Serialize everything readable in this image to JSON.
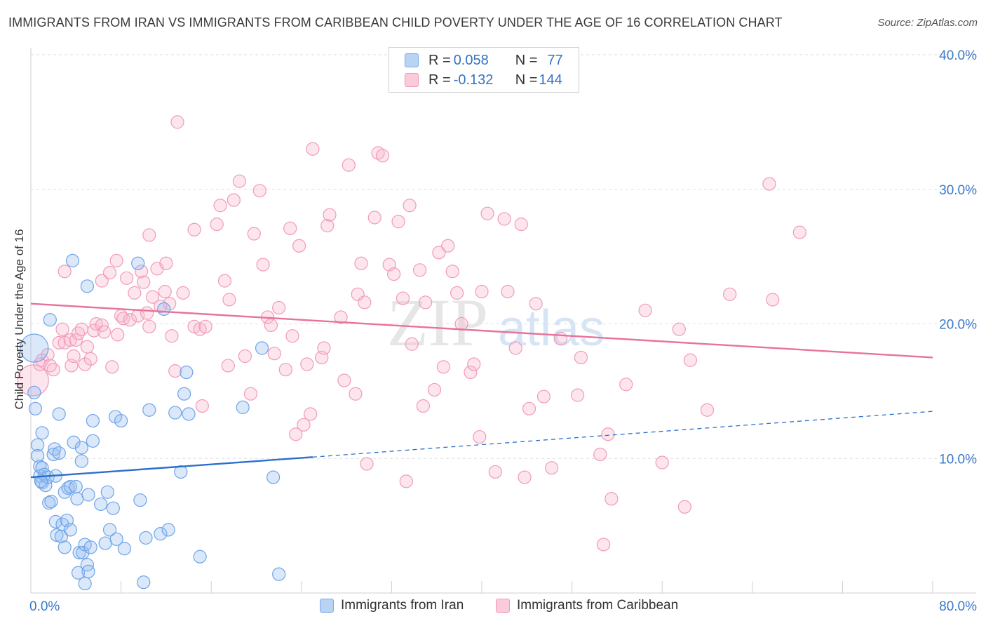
{
  "title": "IMMIGRANTS FROM IRAN VS IMMIGRANTS FROM CARIBBEAN CHILD POVERTY UNDER THE AGE OF 16 CORRELATION CHART",
  "source": "Source: ZipAtlas.com",
  "watermark": {
    "zip": "ZIP",
    "atlas": "atlas"
  },
  "legend": {
    "rows": [
      {
        "r_label": "R = ",
        "r_value": "0.058",
        "n_label": "N = ",
        "n_value": "77"
      },
      {
        "r_label": "R = ",
        "r_value": "-0.132",
        "n_label": "N = ",
        "n_value": "144"
      }
    ]
  },
  "chart_data": {
    "type": "scatter",
    "title": "IMMIGRANTS FROM IRAN VS IMMIGRANTS FROM CARIBBEAN CHILD POVERTY UNDER THE AGE OF 16 CORRELATION CHART",
    "xlabel": "",
    "ylabel": "Child Poverty Under the Age of 16",
    "xlim": [
      0,
      80
    ],
    "ylim": [
      0,
      40
    ],
    "x_tick_labels": [
      "0.0%",
      "80.0%"
    ],
    "y_ticks": [
      10,
      20,
      30,
      40
    ],
    "y_tick_labels": [
      "10.0%",
      "20.0%",
      "30.0%",
      "40.0%"
    ],
    "grid": true,
    "legend_position": "top-center",
    "colors": {
      "iran": "#6fa4e8",
      "caribbean": "#f09bb7",
      "iran_line": "#2a6fcc",
      "caribbean_line": "#e8729a",
      "axis_text": "#3a78c8"
    },
    "series": [
      {
        "name": "Immigrants from Iran",
        "r": 0.058,
        "n": 77,
        "trend": {
          "x0": 0,
          "y0": 8.6,
          "x1": 25,
          "y1": 10.1,
          "x_end": 80,
          "y_end": 13.5
        },
        "points": [
          [
            0.3,
            18.2
          ],
          [
            0.3,
            14.9
          ],
          [
            0.4,
            13.7
          ],
          [
            0.6,
            11.0
          ],
          [
            0.6,
            10.2
          ],
          [
            0.8,
            9.4
          ],
          [
            0.8,
            8.7
          ],
          [
            1.0,
            9.3
          ],
          [
            1.0,
            8.2
          ],
          [
            1.2,
            8.8
          ],
          [
            1.3,
            8.0
          ],
          [
            1.5,
            8.6
          ],
          [
            1.6,
            6.7
          ],
          [
            1.7,
            20.3
          ],
          [
            1.8,
            6.8
          ],
          [
            2.0,
            10.3
          ],
          [
            2.1,
            10.7
          ],
          [
            2.2,
            8.7
          ],
          [
            2.2,
            5.3
          ],
          [
            2.3,
            4.3
          ],
          [
            2.5,
            13.3
          ],
          [
            2.5,
            10.4
          ],
          [
            2.7,
            4.2
          ],
          [
            2.8,
            5.1
          ],
          [
            3.0,
            7.5
          ],
          [
            3.0,
            3.4
          ],
          [
            3.2,
            5.4
          ],
          [
            3.3,
            7.8
          ],
          [
            3.5,
            7.9
          ],
          [
            3.5,
            4.7
          ],
          [
            3.7,
            24.7
          ],
          [
            3.8,
            11.2
          ],
          [
            4.0,
            7.9
          ],
          [
            4.1,
            7.0
          ],
          [
            4.2,
            1.5
          ],
          [
            4.3,
            3.0
          ],
          [
            4.5,
            9.8
          ],
          [
            4.5,
            10.8
          ],
          [
            4.6,
            3.0
          ],
          [
            4.8,
            3.6
          ],
          [
            4.8,
            0.7
          ],
          [
            5.0,
            22.8
          ],
          [
            5.0,
            2.1
          ],
          [
            5.1,
            1.6
          ],
          [
            5.1,
            7.3
          ],
          [
            5.3,
            3.4
          ],
          [
            5.5,
            11.3
          ],
          [
            5.5,
            12.8
          ],
          [
            6.2,
            6.6
          ],
          [
            6.6,
            3.7
          ],
          [
            6.8,
            7.5
          ],
          [
            7.0,
            4.7
          ],
          [
            7.3,
            6.3
          ],
          [
            7.5,
            13.1
          ],
          [
            7.6,
            4.0
          ],
          [
            8.0,
            12.8
          ],
          [
            8.3,
            3.3
          ],
          [
            9.5,
            24.5
          ],
          [
            9.7,
            6.9
          ],
          [
            10.0,
            0.8
          ],
          [
            10.2,
            4.1
          ],
          [
            10.5,
            13.6
          ],
          [
            11.5,
            4.4
          ],
          [
            11.8,
            21.1
          ],
          [
            12.2,
            4.7
          ],
          [
            12.8,
            13.4
          ],
          [
            13.3,
            9.0
          ],
          [
            13.6,
            14.8
          ],
          [
            13.8,
            16.4
          ],
          [
            14.0,
            13.3
          ],
          [
            15.0,
            2.7
          ],
          [
            18.8,
            13.8
          ],
          [
            20.5,
            18.2
          ],
          [
            21.5,
            8.6
          ],
          [
            22.0,
            1.4
          ],
          [
            1.0,
            11.9
          ],
          [
            0.9,
            8.3
          ]
        ]
      },
      {
        "name": "Immigrants from Caribbean",
        "r": -0.132,
        "n": 144,
        "trend": {
          "x0": 0,
          "y0": 21.5,
          "x1": 80,
          "y1": 17.5
        },
        "points": [
          [
            0.2,
            15.8
          ],
          [
            0.8,
            17.0
          ],
          [
            1.0,
            17.3
          ],
          [
            1.5,
            17.7
          ],
          [
            1.7,
            16.9
          ],
          [
            2.0,
            16.6
          ],
          [
            2.5,
            18.6
          ],
          [
            2.8,
            19.6
          ],
          [
            3.0,
            18.6
          ],
          [
            3.0,
            23.9
          ],
          [
            3.5,
            18.8
          ],
          [
            3.6,
            16.9
          ],
          [
            3.8,
            17.6
          ],
          [
            4.0,
            18.8
          ],
          [
            4.2,
            19.3
          ],
          [
            4.5,
            19.6
          ],
          [
            4.8,
            17.0
          ],
          [
            5.0,
            18.3
          ],
          [
            5.3,
            17.4
          ],
          [
            5.6,
            19.5
          ],
          [
            5.8,
            20.0
          ],
          [
            6.3,
            19.9
          ],
          [
            6.3,
            23.2
          ],
          [
            6.5,
            19.4
          ],
          [
            7.0,
            23.8
          ],
          [
            7.2,
            16.8
          ],
          [
            7.6,
            24.7
          ],
          [
            7.7,
            19.2
          ],
          [
            8.0,
            20.6
          ],
          [
            8.2,
            20.4
          ],
          [
            8.5,
            23.4
          ],
          [
            8.8,
            20.3
          ],
          [
            9.2,
            22.3
          ],
          [
            9.5,
            20.6
          ],
          [
            9.8,
            23.9
          ],
          [
            10.0,
            23.1
          ],
          [
            10.3,
            20.8
          ],
          [
            10.5,
            26.6
          ],
          [
            10.5,
            19.8
          ],
          [
            10.8,
            22.0
          ],
          [
            11.2,
            24.1
          ],
          [
            11.5,
            21.3
          ],
          [
            11.9,
            22.4
          ],
          [
            12.0,
            24.5
          ],
          [
            12.3,
            21.5
          ],
          [
            12.5,
            19.1
          ],
          [
            12.8,
            16.5
          ],
          [
            13.0,
            35.0
          ],
          [
            13.5,
            22.3
          ],
          [
            14.5,
            27.0
          ],
          [
            14.5,
            19.8
          ],
          [
            15.0,
            19.6
          ],
          [
            15.2,
            13.9
          ],
          [
            15.5,
            19.8
          ],
          [
            16.5,
            27.4
          ],
          [
            16.8,
            28.8
          ],
          [
            17.2,
            23.2
          ],
          [
            17.5,
            16.9
          ],
          [
            17.6,
            21.8
          ],
          [
            18.0,
            29.2
          ],
          [
            18.5,
            30.6
          ],
          [
            19.0,
            17.6
          ],
          [
            19.5,
            14.8
          ],
          [
            19.8,
            26.7
          ],
          [
            20.3,
            29.9
          ],
          [
            20.6,
            24.4
          ],
          [
            21.0,
            20.5
          ],
          [
            21.3,
            19.9
          ],
          [
            21.6,
            17.8
          ],
          [
            22.0,
            21.2
          ],
          [
            22.6,
            16.6
          ],
          [
            23.0,
            27.1
          ],
          [
            23.2,
            19.1
          ],
          [
            23.5,
            11.8
          ],
          [
            23.8,
            25.8
          ],
          [
            24.2,
            12.5
          ],
          [
            24.5,
            17.0
          ],
          [
            24.8,
            13.3
          ],
          [
            25.0,
            33.0
          ],
          [
            25.8,
            17.5
          ],
          [
            26.0,
            18.2
          ],
          [
            26.3,
            27.3
          ],
          [
            26.5,
            28.1
          ],
          [
            27.5,
            20.5
          ],
          [
            27.8,
            15.8
          ],
          [
            28.2,
            31.8
          ],
          [
            28.8,
            14.8
          ],
          [
            29.0,
            22.2
          ],
          [
            29.3,
            24.5
          ],
          [
            29.6,
            21.6
          ],
          [
            29.8,
            9.6
          ],
          [
            30.5,
            27.9
          ],
          [
            30.8,
            32.7
          ],
          [
            31.2,
            32.5
          ],
          [
            31.8,
            24.4
          ],
          [
            32.2,
            23.7
          ],
          [
            32.6,
            27.6
          ],
          [
            33.0,
            21.9
          ],
          [
            33.3,
            8.3
          ],
          [
            33.6,
            28.8
          ],
          [
            33.8,
            18.5
          ],
          [
            34.5,
            24.0
          ],
          [
            34.8,
            13.9
          ],
          [
            35.0,
            21.6
          ],
          [
            35.8,
            15.1
          ],
          [
            36.2,
            25.3
          ],
          [
            36.6,
            16.8
          ],
          [
            37.0,
            25.8
          ],
          [
            37.4,
            23.9
          ],
          [
            37.8,
            22.3
          ],
          [
            38.2,
            20.0
          ],
          [
            39.0,
            16.4
          ],
          [
            39.3,
            17.0
          ],
          [
            39.8,
            11.6
          ],
          [
            40.0,
            22.4
          ],
          [
            40.5,
            28.2
          ],
          [
            41.2,
            9.0
          ],
          [
            42.0,
            27.8
          ],
          [
            42.3,
            22.4
          ],
          [
            43.0,
            18.2
          ],
          [
            43.5,
            27.4
          ],
          [
            43.8,
            8.6
          ],
          [
            44.2,
            13.7
          ],
          [
            44.8,
            21.5
          ],
          [
            45.5,
            14.6
          ],
          [
            46.2,
            9.3
          ],
          [
            47.0,
            18.9
          ],
          [
            48.5,
            14.7
          ],
          [
            48.8,
            17.5
          ],
          [
            50.5,
            10.3
          ],
          [
            50.8,
            3.6
          ],
          [
            51.2,
            11.8
          ],
          [
            51.5,
            7.0
          ],
          [
            52.8,
            15.5
          ],
          [
            54.5,
            21.0
          ],
          [
            56.0,
            9.7
          ],
          [
            57.5,
            19.6
          ],
          [
            58.0,
            6.4
          ],
          [
            58.5,
            17.3
          ],
          [
            60.0,
            13.6
          ],
          [
            62.0,
            22.2
          ],
          [
            65.5,
            30.4
          ],
          [
            65.8,
            21.8
          ],
          [
            68.2,
            26.8
          ]
        ]
      }
    ]
  },
  "bottom_legend": {
    "iran": "Immigrants from Iran",
    "caribbean": "Immigrants from Caribbean"
  }
}
